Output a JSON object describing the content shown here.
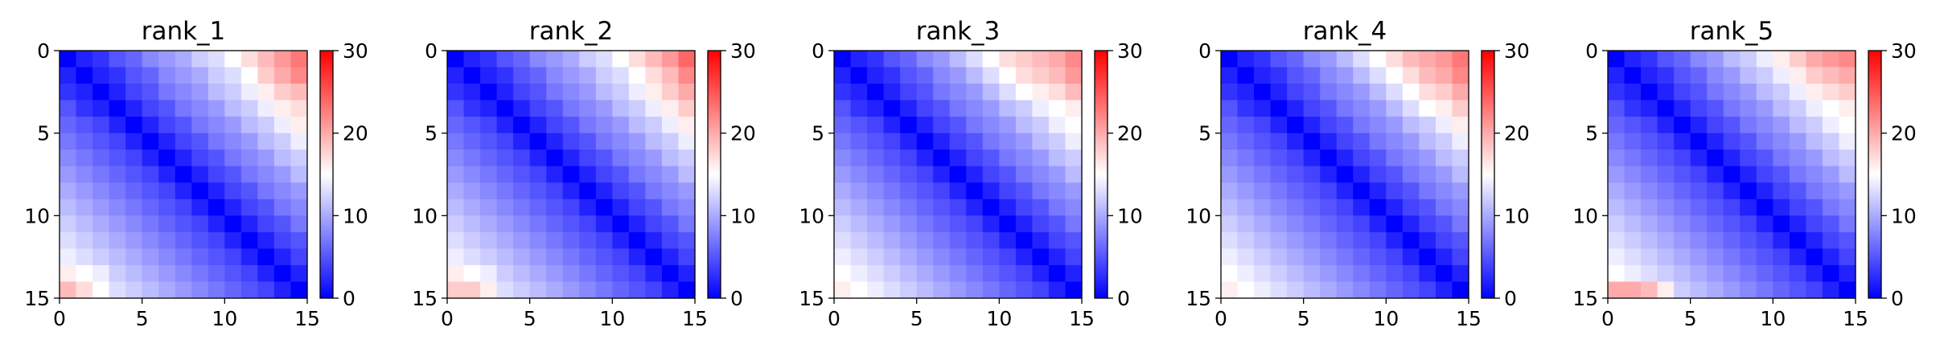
{
  "chart_data": {
    "type": "heatmap",
    "panels": [
      {
        "title": "rank_1",
        "matrix": [
          [
            0,
            2,
            3,
            5,
            6,
            8,
            9,
            10,
            12,
            13,
            15,
            17,
            19,
            21,
            23
          ],
          [
            2,
            0,
            2,
            3,
            5,
            6,
            8,
            9,
            10,
            12,
            13,
            15,
            18,
            20,
            22
          ],
          [
            3,
            2,
            0,
            2,
            4,
            5,
            7,
            8,
            9,
            11,
            12,
            14,
            16,
            18,
            19
          ],
          [
            5,
            3,
            2,
            0,
            2,
            4,
            5,
            7,
            8,
            9,
            11,
            12,
            14,
            16,
            17
          ],
          [
            6,
            5,
            4,
            2,
            0,
            2,
            4,
            5,
            7,
            8,
            9,
            11,
            12,
            14,
            16
          ],
          [
            7,
            6,
            5,
            4,
            2,
            0,
            2,
            4,
            5,
            7,
            8,
            9,
            11,
            12,
            14
          ],
          [
            8,
            7,
            6,
            5,
            4,
            2,
            0,
            2,
            4,
            5,
            7,
            8,
            9,
            11,
            12
          ],
          [
            9,
            8,
            7,
            6,
            5,
            4,
            2,
            0,
            2,
            4,
            5,
            7,
            8,
            9,
            11
          ],
          [
            10,
            9,
            8,
            7,
            6,
            5,
            4,
            2,
            0,
            2,
            4,
            5,
            7,
            8,
            9
          ],
          [
            11,
            10,
            9,
            8,
            7,
            6,
            5,
            4,
            2,
            0,
            2,
            4,
            5,
            7,
            8
          ],
          [
            12,
            11,
            10,
            9,
            8,
            7,
            6,
            5,
            4,
            2,
            0,
            2,
            4,
            5,
            7
          ],
          [
            13,
            12,
            11,
            10,
            9,
            8,
            7,
            6,
            5,
            4,
            2,
            0,
            2,
            4,
            5
          ],
          [
            14,
            13,
            12,
            11,
            10,
            9,
            8,
            7,
            6,
            5,
            4,
            2,
            0,
            2,
            4
          ],
          [
            16,
            15,
            14,
            12,
            11,
            10,
            9,
            8,
            7,
            6,
            5,
            4,
            2,
            0,
            2
          ],
          [
            19,
            17,
            15,
            13,
            12,
            11,
            10,
            9,
            8,
            7,
            6,
            5,
            4,
            2,
            0
          ]
        ]
      },
      {
        "title": "rank_2",
        "matrix": [
          [
            0,
            2,
            3,
            5,
            6,
            8,
            9,
            10,
            12,
            13,
            15,
            17,
            19,
            21,
            24
          ],
          [
            2,
            0,
            2,
            3,
            5,
            6,
            8,
            9,
            10,
            12,
            13,
            15,
            17,
            19,
            22
          ],
          [
            3,
            2,
            0,
            2,
            4,
            5,
            7,
            8,
            9,
            11,
            12,
            14,
            16,
            18,
            20
          ],
          [
            5,
            3,
            2,
            0,
            2,
            4,
            5,
            7,
            8,
            9,
            11,
            12,
            14,
            16,
            18
          ],
          [
            6,
            5,
            4,
            2,
            0,
            2,
            4,
            5,
            7,
            8,
            9,
            11,
            12,
            14,
            16
          ],
          [
            7,
            6,
            5,
            4,
            2,
            0,
            2,
            4,
            5,
            7,
            8,
            9,
            11,
            12,
            14
          ],
          [
            8,
            7,
            6,
            5,
            4,
            2,
            0,
            2,
            4,
            5,
            7,
            8,
            9,
            11,
            12
          ],
          [
            9,
            8,
            7,
            6,
            5,
            4,
            2,
            0,
            2,
            4,
            5,
            7,
            8,
            9,
            11
          ],
          [
            10,
            9,
            8,
            7,
            6,
            5,
            4,
            2,
            0,
            2,
            4,
            5,
            7,
            8,
            9
          ],
          [
            11,
            10,
            9,
            8,
            7,
            6,
            5,
            4,
            2,
            0,
            2,
            4,
            5,
            7,
            8
          ],
          [
            12,
            11,
            10,
            9,
            8,
            7,
            6,
            5,
            4,
            2,
            0,
            2,
            4,
            5,
            7
          ],
          [
            13,
            12,
            11,
            10,
            9,
            8,
            7,
            6,
            5,
            4,
            2,
            0,
            2,
            4,
            5
          ],
          [
            14,
            13,
            12,
            11,
            10,
            9,
            8,
            7,
            6,
            5,
            4,
            2,
            0,
            2,
            4
          ],
          [
            16,
            15,
            14,
            12,
            11,
            10,
            9,
            8,
            7,
            6,
            5,
            4,
            2,
            0,
            2
          ],
          [
            18,
            18,
            16,
            13,
            12,
            11,
            10,
            9,
            8,
            7,
            6,
            5,
            4,
            2,
            0
          ]
        ]
      },
      {
        "title": "rank_3",
        "matrix": [
          [
            0,
            2,
            3,
            5,
            6,
            8,
            9,
            11,
            13,
            15,
            17,
            18,
            19,
            20,
            22
          ],
          [
            2,
            0,
            2,
            3,
            5,
            6,
            8,
            9,
            11,
            13,
            15,
            17,
            18,
            19,
            21
          ],
          [
            3,
            2,
            0,
            2,
            4,
            5,
            7,
            8,
            9,
            11,
            13,
            15,
            16,
            17,
            19
          ],
          [
            5,
            3,
            2,
            0,
            2,
            4,
            5,
            7,
            8,
            9,
            11,
            12,
            14,
            15,
            16
          ],
          [
            6,
            5,
            4,
            2,
            0,
            2,
            4,
            5,
            7,
            8,
            9,
            11,
            12,
            14,
            15
          ],
          [
            7,
            6,
            5,
            4,
            2,
            0,
            2,
            4,
            5,
            7,
            8,
            9,
            11,
            12,
            14
          ],
          [
            8,
            7,
            6,
            5,
            4,
            2,
            0,
            2,
            4,
            5,
            7,
            8,
            9,
            11,
            12
          ],
          [
            9,
            8,
            7,
            6,
            5,
            4,
            2,
            0,
            2,
            4,
            5,
            7,
            8,
            9,
            11
          ],
          [
            10,
            9,
            8,
            7,
            6,
            5,
            4,
            2,
            0,
            2,
            4,
            5,
            7,
            8,
            9
          ],
          [
            11,
            10,
            9,
            8,
            7,
            6,
            5,
            4,
            2,
            0,
            2,
            4,
            5,
            7,
            8
          ],
          [
            12,
            11,
            10,
            9,
            8,
            7,
            6,
            5,
            4,
            2,
            0,
            2,
            4,
            5,
            7
          ],
          [
            13,
            12,
            11,
            10,
            9,
            8,
            7,
            6,
            5,
            4,
            2,
            0,
            2,
            4,
            5
          ],
          [
            14,
            13,
            12,
            11,
            10,
            9,
            8,
            7,
            6,
            5,
            4,
            2,
            0,
            2,
            4
          ],
          [
            15,
            14,
            13,
            12,
            11,
            10,
            9,
            8,
            7,
            6,
            5,
            4,
            2,
            0,
            2
          ],
          [
            16,
            15,
            14,
            13,
            12,
            11,
            10,
            9,
            8,
            7,
            6,
            5,
            4,
            2,
            0
          ]
        ]
      },
      {
        "title": "rank_4",
        "matrix": [
          [
            0,
            2,
            3,
            5,
            6,
            8,
            9,
            11,
            13,
            15,
            17,
            19,
            20,
            21,
            23
          ],
          [
            2,
            0,
            2,
            3,
            5,
            6,
            8,
            9,
            11,
            13,
            15,
            17,
            19,
            20,
            22
          ],
          [
            3,
            2,
            0,
            2,
            4,
            5,
            7,
            8,
            9,
            11,
            13,
            15,
            17,
            18,
            20
          ],
          [
            5,
            3,
            2,
            0,
            2,
            4,
            5,
            7,
            8,
            9,
            11,
            13,
            15,
            16,
            18
          ],
          [
            6,
            5,
            4,
            2,
            0,
            2,
            4,
            5,
            7,
            8,
            9,
            11,
            12,
            14,
            16
          ],
          [
            7,
            6,
            5,
            4,
            2,
            0,
            2,
            4,
            5,
            7,
            8,
            9,
            11,
            12,
            14
          ],
          [
            8,
            7,
            6,
            5,
            4,
            2,
            0,
            2,
            4,
            5,
            7,
            8,
            9,
            11,
            12
          ],
          [
            9,
            8,
            7,
            6,
            5,
            4,
            2,
            0,
            2,
            4,
            5,
            7,
            8,
            9,
            11
          ],
          [
            10,
            9,
            8,
            7,
            6,
            5,
            4,
            2,
            0,
            2,
            4,
            5,
            7,
            8,
            9
          ],
          [
            11,
            10,
            9,
            8,
            7,
            6,
            5,
            4,
            2,
            0,
            2,
            4,
            5,
            7,
            8
          ],
          [
            12,
            11,
            10,
            9,
            8,
            7,
            6,
            5,
            4,
            2,
            0,
            2,
            4,
            5,
            7
          ],
          [
            13,
            12,
            11,
            10,
            9,
            8,
            7,
            6,
            5,
            4,
            2,
            0,
            2,
            4,
            5
          ],
          [
            14,
            13,
            12,
            11,
            10,
            9,
            8,
            7,
            6,
            5,
            4,
            2,
            0,
            2,
            4
          ],
          [
            15,
            14,
            13,
            12,
            11,
            10,
            9,
            8,
            7,
            6,
            5,
            4,
            2,
            0,
            2
          ],
          [
            16,
            15,
            14,
            13,
            12,
            11,
            10,
            9,
            8,
            7,
            6,
            5,
            4,
            2,
            0
          ]
        ]
      },
      {
        "title": "rank_5",
        "matrix": [
          [
            0,
            2,
            3,
            5,
            6,
            8,
            9,
            11,
            12,
            14,
            16,
            18,
            20,
            21,
            22
          ],
          [
            2,
            0,
            2,
            3,
            5,
            6,
            8,
            9,
            11,
            12,
            14,
            16,
            18,
            19,
            20
          ],
          [
            3,
            2,
            0,
            2,
            4,
            5,
            7,
            8,
            9,
            11,
            12,
            14,
            16,
            17,
            18
          ],
          [
            5,
            3,
            2,
            0,
            2,
            4,
            5,
            7,
            8,
            9,
            11,
            12,
            14,
            15,
            16
          ],
          [
            6,
            5,
            4,
            2,
            0,
            2,
            4,
            5,
            7,
            8,
            9,
            11,
            12,
            14,
            15
          ],
          [
            7,
            6,
            5,
            4,
            2,
            0,
            2,
            4,
            5,
            7,
            8,
            9,
            11,
            12,
            14
          ],
          [
            8,
            7,
            6,
            5,
            4,
            2,
            0,
            2,
            4,
            5,
            7,
            8,
            9,
            11,
            12
          ],
          [
            9,
            8,
            7,
            6,
            5,
            4,
            2,
            0,
            2,
            4,
            5,
            7,
            8,
            9,
            11
          ],
          [
            10,
            9,
            8,
            7,
            6,
            5,
            4,
            2,
            0,
            2,
            4,
            5,
            7,
            8,
            9
          ],
          [
            11,
            10,
            9,
            8,
            7,
            6,
            5,
            4,
            2,
            0,
            2,
            4,
            5,
            7,
            8
          ],
          [
            12,
            11,
            10,
            9,
            8,
            7,
            6,
            5,
            4,
            2,
            0,
            2,
            4,
            5,
            7
          ],
          [
            13,
            12,
            11,
            10,
            9,
            8,
            7,
            6,
            5,
            4,
            2,
            0,
            2,
            4,
            5
          ],
          [
            14,
            13,
            12,
            11,
            10,
            9,
            8,
            7,
            6,
            5,
            4,
            2,
            0,
            2,
            4
          ],
          [
            15,
            14,
            13,
            12,
            11,
            10,
            9,
            8,
            7,
            6,
            5,
            4,
            2,
            0,
            2
          ],
          [
            20,
            20,
            19,
            16,
            12,
            11,
            10,
            9,
            8,
            7,
            6,
            5,
            4,
            2,
            0
          ]
        ]
      }
    ],
    "x_ticks": [
      0,
      5,
      10,
      15
    ],
    "y_ticks": [
      0,
      5,
      10,
      15
    ],
    "xlim": [
      0,
      15
    ],
    "ylim": [
      15,
      0
    ],
    "colorbar": {
      "ticks": [
        0,
        10,
        20,
        30
      ],
      "range": [
        0,
        30
      ],
      "colormap": "bwr",
      "colors": [
        "#0000ff",
        "#ffffff",
        "#ff0000"
      ]
    },
    "grid": false
  }
}
